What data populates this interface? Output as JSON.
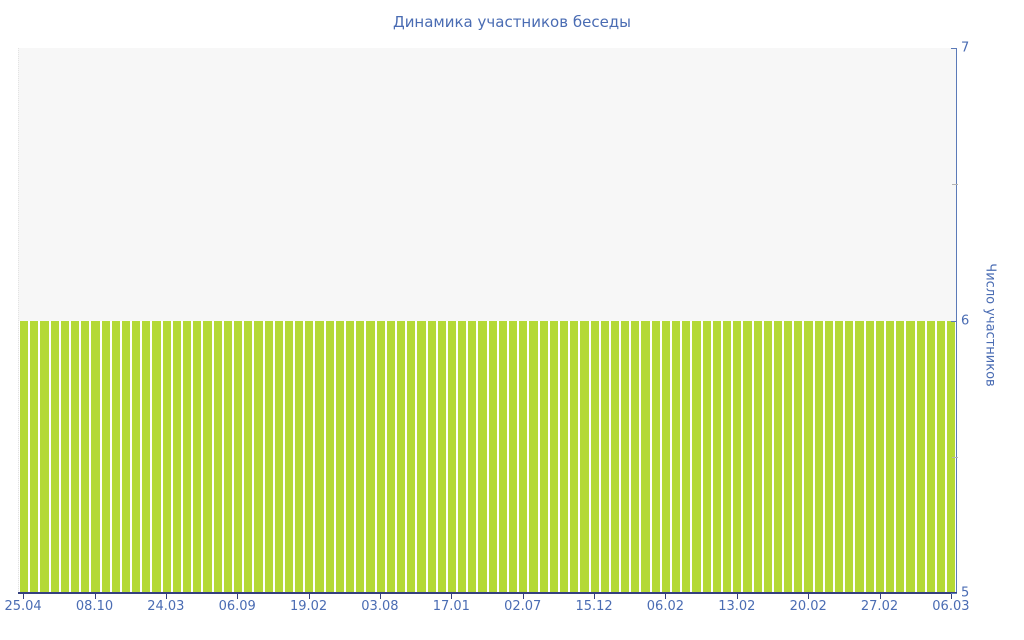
{
  "chart_data": {
    "type": "bar",
    "title": "Динамика участников беседы",
    "ylabel": "Число участников",
    "xlabel": "",
    "ylim": [
      5,
      7
    ],
    "grid": false,
    "legend": "none",
    "bar_value": 6,
    "bar_count": 92,
    "values": [
      6,
      6,
      6,
      6,
      6,
      6,
      6,
      6,
      6,
      6,
      6,
      6,
      6,
      6,
      6,
      6,
      6,
      6,
      6,
      6,
      6,
      6,
      6,
      6,
      6,
      6,
      6,
      6,
      6,
      6,
      6,
      6,
      6,
      6,
      6,
      6,
      6,
      6,
      6,
      6,
      6,
      6,
      6,
      6,
      6,
      6,
      6,
      6,
      6,
      6,
      6,
      6,
      6,
      6,
      6,
      6,
      6,
      6,
      6,
      6,
      6,
      6,
      6,
      6,
      6,
      6,
      6,
      6,
      6,
      6,
      6,
      6,
      6,
      6,
      6,
      6,
      6,
      6,
      6,
      6,
      6,
      6,
      6,
      6,
      6,
      6,
      6,
      6,
      6,
      6,
      6,
      6
    ],
    "x_tick_labels": [
      "25.04",
      "08.10",
      "24.03",
      "06.09",
      "19.02",
      "03.08",
      "17.01",
      "02.07",
      "15.12",
      "06.02",
      "13.02",
      "20.02",
      "27.02",
      "06.03"
    ],
    "x_tick_every": 7,
    "y_major_ticks": [
      7,
      6,
      5
    ],
    "y_minor_ticks": [
      6.5,
      5.5
    ],
    "colors": {
      "bar": "#b4d936",
      "bar_gap": "#ffffff",
      "plot_bg": "#f7f7f7",
      "label": "#4a6cb3",
      "axis_right": "#5b7ab8",
      "axis_bottom": "#35417e",
      "minor_tick": "#b3b3b3",
      "page_bg": "#ffffff"
    }
  }
}
